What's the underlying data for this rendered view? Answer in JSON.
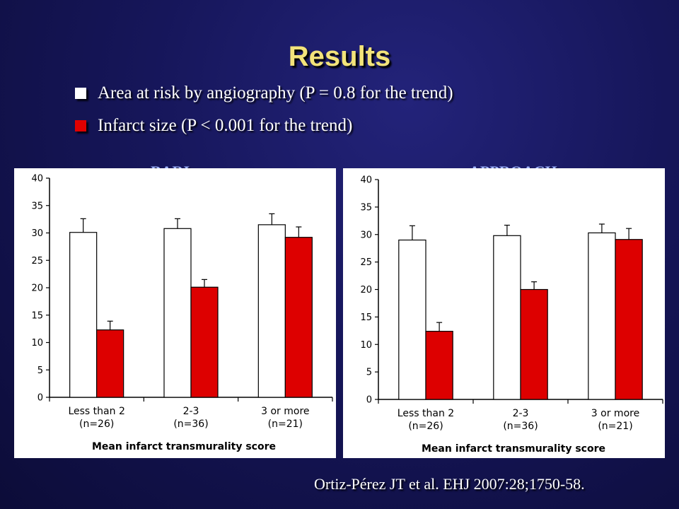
{
  "title": "Results",
  "legend": [
    {
      "label": "Area at risk by angiography (P = 0.8 for the trend)",
      "color": "#ffffff"
    },
    {
      "label": "Infarct size (P < 0.001 for the trend)",
      "color": "#e00000"
    }
  ],
  "citation": "Ortiz-Pérez JT et al. EHJ 2007:28;1750-58.",
  "chart_data": [
    {
      "type": "bar",
      "title": "BARI",
      "xlabel": "Mean infarct transmurality score",
      "ylabel": "",
      "ylim": [
        0,
        40
      ],
      "yticks": [
        0,
        5,
        10,
        15,
        20,
        25,
        30,
        35,
        40
      ],
      "categories": [
        [
          "Less than 2",
          "(n=26)"
        ],
        [
          "2-3",
          "(n=36)"
        ],
        [
          "3 or more",
          "(n=21)"
        ]
      ],
      "series": [
        {
          "values": [
            30.1,
            30.8,
            31.5
          ],
          "errors": [
            2.5,
            1.8,
            2.0
          ],
          "color": "#ffffff"
        },
        {
          "values": [
            12.3,
            20.1,
            29.2
          ],
          "errors": [
            1.6,
            1.4,
            1.9
          ],
          "color": "#dd0000"
        }
      ]
    },
    {
      "type": "bar",
      "title": "APPROACH",
      "xlabel": "Mean infarct transmurality score",
      "ylabel": "",
      "ylim": [
        0,
        40
      ],
      "yticks": [
        0,
        5,
        10,
        15,
        20,
        25,
        30,
        35,
        40
      ],
      "categories": [
        [
          "Less than 2",
          "(n=26)"
        ],
        [
          "2-3",
          "(n=36)"
        ],
        [
          "3 or more",
          "(n=21)"
        ]
      ],
      "series": [
        {
          "values": [
            29.0,
            29.8,
            30.3
          ],
          "errors": [
            2.6,
            1.9,
            1.6
          ],
          "color": "#ffffff"
        },
        {
          "values": [
            12.4,
            20.0,
            29.1
          ],
          "errors": [
            1.6,
            1.4,
            2.0
          ],
          "color": "#dd0000"
        }
      ]
    }
  ]
}
